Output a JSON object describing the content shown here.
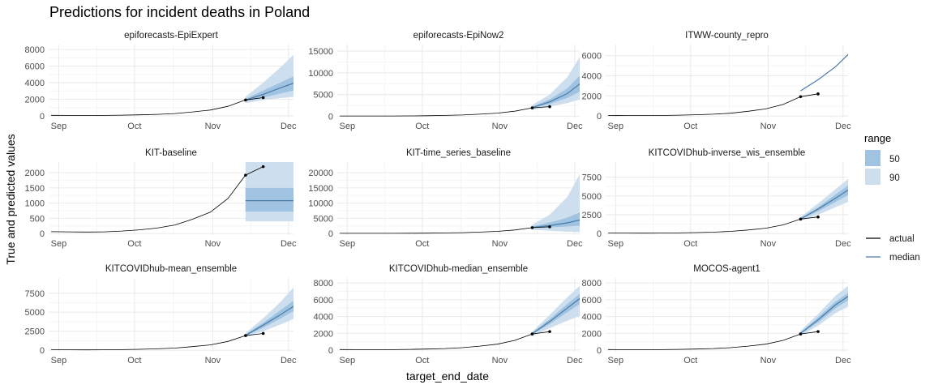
{
  "title": "Predictions for incident deaths in Poland",
  "xlabel": "target_end_date",
  "ylabel": "True and predicted values",
  "colors": {
    "median": "#4a7aa8",
    "band50": "#9fc3e0",
    "band90": "#cddfee",
    "actual": "#000000",
    "grid_major": "#ebebeb",
    "grid_minor": "#f5f5f5"
  },
  "legend": {
    "range_title": "range",
    "range_items": [
      "50",
      "90"
    ],
    "line_items": [
      "actual",
      "median"
    ]
  },
  "chart_data": {
    "type": "line",
    "x_ticks": [
      "Sep",
      "Oct",
      "Nov",
      "Dec"
    ],
    "x_tick_days": [
      0,
      30,
      61,
      91
    ],
    "xlim": [
      -4,
      93
    ],
    "actual": {
      "x": [
        -3,
        4,
        11,
        18,
        25,
        32,
        39,
        46,
        53,
        60,
        67,
        74,
        81
      ],
      "y": [
        60,
        55,
        50,
        55,
        80,
        120,
        180,
        280,
        470,
        700,
        1150,
        1920,
        2200
      ],
      "points_from": 11
    },
    "panels": [
      {
        "name": "epiforecasts-EpiExpert",
        "ylim": [
          -200,
          8600
        ],
        "yticks": [
          0,
          2000,
          4000,
          6000,
          8000
        ],
        "ytick_labels": [
          "0",
          "2000",
          "4000",
          "6000",
          "8000"
        ],
        "forecast": {
          "x": [
            74,
            81,
            88,
            95
          ],
          "median": [
            1900,
            2600,
            3400,
            4150
          ],
          "q25": [
            1750,
            2200,
            2700,
            3200
          ],
          "q75": [
            2050,
            3050,
            4050,
            5050
          ],
          "q05": [
            1550,
            1900,
            2150,
            2350
          ],
          "q95": [
            2300,
            4000,
            5900,
            7950
          ]
        }
      },
      {
        "name": "epiforecasts-EpiNow2",
        "ylim": [
          -300,
          16500
        ],
        "yticks": [
          0,
          5000,
          10000,
          15000
        ],
        "ytick_labels": [
          "0",
          "5000",
          "10000",
          "15000"
        ],
        "forecast": {
          "x": [
            74,
            81,
            88,
            95
          ],
          "median": [
            2000,
            3300,
            5200,
            8300
          ],
          "q25": [
            1800,
            2800,
            4200,
            6200
          ],
          "q75": [
            2200,
            3900,
            6400,
            10500
          ],
          "q05": [
            1500,
            2200,
            3000,
            4200
          ],
          "q95": [
            2600,
            5000,
            9000,
            15500
          ]
        }
      },
      {
        "name": "ITWW-county_repro",
        "ylim": [
          -150,
          7100
        ],
        "yticks": [
          0,
          2000,
          4000,
          6000
        ],
        "ytick_labels": [
          "0",
          "2000",
          "4000",
          "6000"
        ],
        "forecast": {
          "x": [
            74,
            81,
            88,
            95
          ],
          "median": [
            2500,
            3600,
            4900,
            6600
          ]
        }
      },
      {
        "name": "KIT-baseline",
        "ylim": [
          -50,
          2350
        ],
        "yticks": [
          0,
          500,
          1000,
          1500,
          2000
        ],
        "ytick_labels": [
          "0",
          "500",
          "1000",
          "1500",
          "2000"
        ],
        "forecast": {
          "x": [
            74,
            81,
            88,
            95
          ],
          "median": [
            1080,
            1080,
            1080,
            1080
          ],
          "q25": [
            720,
            720,
            720,
            720
          ],
          "q75": [
            1500,
            1500,
            1500,
            1500
          ],
          "q05": [
            400,
            400,
            400,
            400
          ],
          "q95": [
            2350,
            2350,
            2350,
            2350
          ]
        }
      },
      {
        "name": "KIT-time_series_baseline",
        "ylim": [
          -500,
          23500
        ],
        "yticks": [
          0,
          5000,
          10000,
          15000,
          20000
        ],
        "ytick_labels": [
          "0",
          "5000",
          "10000",
          "15000",
          "20000"
        ],
        "forecast": {
          "x": [
            74,
            81,
            88,
            95
          ],
          "median": [
            2000,
            2600,
            3500,
            4800
          ],
          "q25": [
            1700,
            2000,
            2300,
            2700
          ],
          "q75": [
            2300,
            3600,
            5200,
            7600
          ],
          "q05": [
            1200,
            900,
            600,
            400
          ],
          "q95": [
            2900,
            6200,
            12000,
            22500
          ]
        }
      },
      {
        "name": "KITCOVIDhub-inverse_wis_ensemble",
        "ylim": [
          -200,
          9500
        ],
        "yticks": [
          0,
          2500,
          5000,
          7500
        ],
        "ytick_labels": [
          "0",
          "2500",
          "5000",
          "7500"
        ],
        "forecast": {
          "x": [
            74,
            81,
            88,
            95
          ],
          "median": [
            1950,
            3250,
            4700,
            6200
          ],
          "q25": [
            1850,
            2950,
            4200,
            5500
          ],
          "q75": [
            2050,
            3500,
            5200,
            6900
          ],
          "q05": [
            1700,
            2500,
            3500,
            4500
          ],
          "q95": [
            2200,
            4000,
            5900,
            7800
          ]
        }
      },
      {
        "name": "KITCOVIDhub-mean_ensemble",
        "ylim": [
          -200,
          9500
        ],
        "yticks": [
          0,
          2500,
          5000,
          7500
        ],
        "ytick_labels": [
          "0",
          "2500",
          "5000",
          "7500"
        ],
        "forecast": {
          "x": [
            74,
            81,
            88,
            95
          ],
          "median": [
            1950,
            3300,
            4700,
            6200
          ],
          "q25": [
            1850,
            2950,
            4200,
            5500
          ],
          "q75": [
            2050,
            3600,
            5300,
            7000
          ],
          "q05": [
            1700,
            2500,
            3400,
            4400
          ],
          "q95": [
            2250,
            4200,
            6400,
            9000
          ]
        }
      },
      {
        "name": "KITCOVIDhub-median_ensemble",
        "ylim": [
          -200,
          8600
        ],
        "yticks": [
          0,
          2000,
          4000,
          6000,
          8000
        ],
        "ytick_labels": [
          "0",
          "2000",
          "4000",
          "6000",
          "8000"
        ],
        "forecast": {
          "x": [
            74,
            81,
            88,
            95
          ],
          "median": [
            1950,
            3400,
            5000,
            6600
          ],
          "q25": [
            1850,
            3100,
            4500,
            5900
          ],
          "q75": [
            2050,
            3700,
            5500,
            7200
          ],
          "q05": [
            1650,
            2600,
            3500,
            4300
          ],
          "q95": [
            2200,
            4200,
            6300,
            8200
          ]
        }
      },
      {
        "name": "MOCOS-agent1",
        "ylim": [
          -200,
          8600
        ],
        "yticks": [
          0,
          2000,
          4000,
          6000,
          8000
        ],
        "ytick_labels": [
          "0",
          "2000",
          "4000",
          "6000",
          "8000"
        ],
        "forecast": {
          "x": [
            74,
            81,
            88,
            95
          ],
          "median": [
            2000,
            3600,
            5400,
            6800
          ],
          "q25": [
            1900,
            3300,
            5000,
            6300
          ],
          "q75": [
            2100,
            3900,
            5800,
            7200
          ],
          "q05": [
            1700,
            2900,
            4400,
            5500
          ],
          "q95": [
            2300,
            4300,
            6500,
            8100
          ]
        }
      }
    ]
  }
}
